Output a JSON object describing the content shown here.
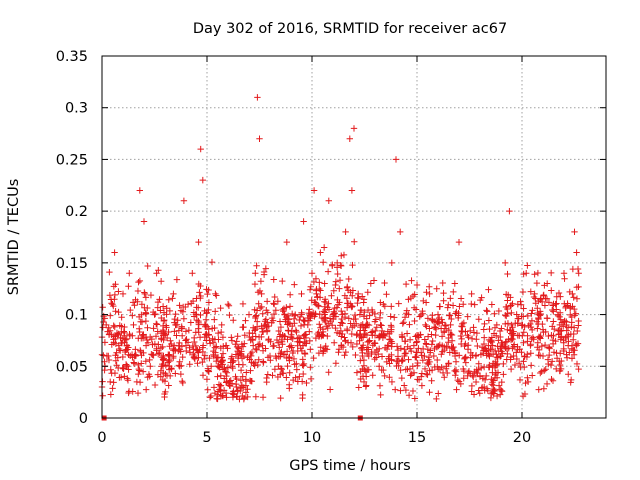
{
  "chart_data": {
    "type": "scatter",
    "title": "Day 302 of 2016, SRMTID for receiver ac67",
    "xlabel": "GPS time / hours",
    "ylabel": "SRMTID / TECUs",
    "xlim": [
      0,
      24
    ],
    "ylim": [
      0,
      0.35
    ],
    "xticks": [
      0,
      5,
      10,
      15,
      20
    ],
    "xtick_labels": [
      "0",
      "5",
      "10",
      "15",
      "20"
    ],
    "yticks": [
      0,
      0.05,
      0.1,
      0.15,
      0.2,
      0.25,
      0.3,
      0.35
    ],
    "ytick_labels": [
      "0",
      "0.05",
      "0.1",
      "0.15",
      "0.2",
      "0.25",
      "0.3",
      "0.35"
    ],
    "grid": true,
    "marker": "plus",
    "color": "#e31a1c",
    "series": [
      {
        "name": "SRMTID",
        "x": [
          0.0,
          0.2,
          0.3,
          0.5,
          0.6,
          0.8,
          1.0,
          1.2,
          1.3,
          1.5,
          1.6,
          1.8,
          1.9,
          2.0,
          2.1,
          2.3,
          2.5,
          2.6,
          2.8,
          3.0,
          3.2,
          3.4,
          3.5,
          3.7,
          3.9,
          4.0,
          4.1,
          4.3,
          4.4,
          4.5,
          4.6,
          4.7,
          4.8,
          5.0,
          5.2,
          5.4,
          5.5,
          5.7,
          5.9,
          6.0,
          6.2,
          6.4,
          6.5,
          6.7,
          6.8,
          7.0,
          7.2,
          7.3,
          7.4,
          7.5,
          7.6,
          7.8,
          8.0,
          8.2,
          8.4,
          8.6,
          8.8,
          9.0,
          9.2,
          9.4,
          9.5,
          9.6,
          9.8,
          10.0,
          10.1,
          10.2,
          10.4,
          10.5,
          10.6,
          10.8,
          11.0,
          11.2,
          11.4,
          11.6,
          11.8,
          11.9,
          12.0,
          12.2,
          12.4,
          12.6,
          12.8,
          13.0,
          13.2,
          13.4,
          13.6,
          13.8,
          14.0,
          14.2,
          14.4,
          14.6,
          14.8,
          15.0,
          15.2,
          15.4,
          15.6,
          15.8,
          16.0,
          16.2,
          16.4,
          16.6,
          16.8,
          17.0,
          17.2,
          17.4,
          17.6,
          17.8,
          18.0,
          18.2,
          18.4,
          18.6,
          18.8,
          19.0,
          19.2,
          19.4,
          19.6,
          19.8,
          20.0,
          20.2,
          20.4,
          20.6,
          20.8,
          21.0,
          21.2,
          21.4,
          21.6,
          21.8,
          22.0,
          22.2,
          22.4,
          22.5,
          22.6,
          22.7
        ],
        "y": [
          0.03,
          0.09,
          0.06,
          0.11,
          0.16,
          0.07,
          0.12,
          0.05,
          0.14,
          0.09,
          0.06,
          0.22,
          0.11,
          0.19,
          0.07,
          0.05,
          0.1,
          0.14,
          0.04,
          0.08,
          0.06,
          0.12,
          0.09,
          0.05,
          0.21,
          0.07,
          0.11,
          0.14,
          0.06,
          0.1,
          0.17,
          0.26,
          0.23,
          0.08,
          0.05,
          0.12,
          0.04,
          0.09,
          0.07,
          0.11,
          0.05,
          0.03,
          0.06,
          0.04,
          0.08,
          0.1,
          0.07,
          0.14,
          0.31,
          0.27,
          0.12,
          0.09,
          0.06,
          0.11,
          0.05,
          0.08,
          0.17,
          0.07,
          0.1,
          0.04,
          0.12,
          0.19,
          0.09,
          0.14,
          0.22,
          0.11,
          0.16,
          0.08,
          0.13,
          0.21,
          0.1,
          0.15,
          0.07,
          0.18,
          0.27,
          0.22,
          0.28,
          0.12,
          0.06,
          0.09,
          0.13,
          0.08,
          0.05,
          0.11,
          0.07,
          0.15,
          0.25,
          0.18,
          0.06,
          0.1,
          0.05,
          0.08,
          0.04,
          0.09,
          0.12,
          0.06,
          0.1,
          0.07,
          0.05,
          0.09,
          0.13,
          0.17,
          0.11,
          0.08,
          0.12,
          0.06,
          0.04,
          0.03,
          0.07,
          0.05,
          0.09,
          0.06,
          0.15,
          0.2,
          0.08,
          0.11,
          0.09,
          0.14,
          0.07,
          0.12,
          0.1,
          0.06,
          0.13,
          0.08,
          0.11,
          0.09,
          0.14,
          0.07,
          0.12,
          0.18,
          0.16,
          0.14
        ]
      }
    ],
    "markers_on_axis": [
      0.1,
      12.3
    ]
  }
}
